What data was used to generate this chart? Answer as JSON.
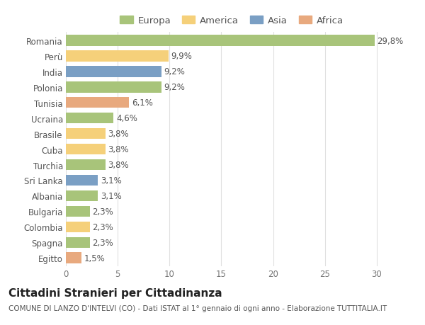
{
  "categories": [
    "Egitto",
    "Spagna",
    "Colombia",
    "Bulgaria",
    "Albania",
    "Sri Lanka",
    "Turchia",
    "Cuba",
    "Brasile",
    "Ucraina",
    "Tunisia",
    "Polonia",
    "India",
    "Perù",
    "Romania"
  ],
  "values": [
    1.5,
    2.3,
    2.3,
    2.3,
    3.1,
    3.1,
    3.8,
    3.8,
    3.8,
    4.6,
    6.1,
    9.2,
    9.2,
    9.9,
    29.8
  ],
  "colors": [
    "#e8a97e",
    "#a8c47a",
    "#f5d07a",
    "#a8c47a",
    "#a8c47a",
    "#7a9fc4",
    "#a8c47a",
    "#f5d07a",
    "#f5d07a",
    "#a8c47a",
    "#e8a97e",
    "#a8c47a",
    "#7a9fc4",
    "#f5d07a",
    "#a8c47a"
  ],
  "labels": [
    "1,5%",
    "2,3%",
    "2,3%",
    "2,3%",
    "3,1%",
    "3,1%",
    "3,8%",
    "3,8%",
    "3,8%",
    "4,6%",
    "6,1%",
    "9,2%",
    "9,2%",
    "9,9%",
    "29,8%"
  ],
  "legend": {
    "Europa": "#a8c47a",
    "America": "#f5d07a",
    "Asia": "#7a9fc4",
    "Africa": "#e8a97e"
  },
  "title": "Cittadini Stranieri per Cittadinanza",
  "subtitle": "COMUNE DI LANZO D'INTELVI (CO) - Dati ISTAT al 1° gennaio di ogni anno - Elaborazione TUTTITALIA.IT",
  "xlim": [
    0,
    32
  ],
  "xticks": [
    0,
    5,
    10,
    15,
    20,
    25,
    30
  ],
  "background_color": "#ffffff",
  "grid_color": "#e0e0e0",
  "bar_height": 0.7,
  "label_fontsize": 8.5,
  "tick_fontsize": 8.5,
  "title_fontsize": 11,
  "subtitle_fontsize": 7.5
}
